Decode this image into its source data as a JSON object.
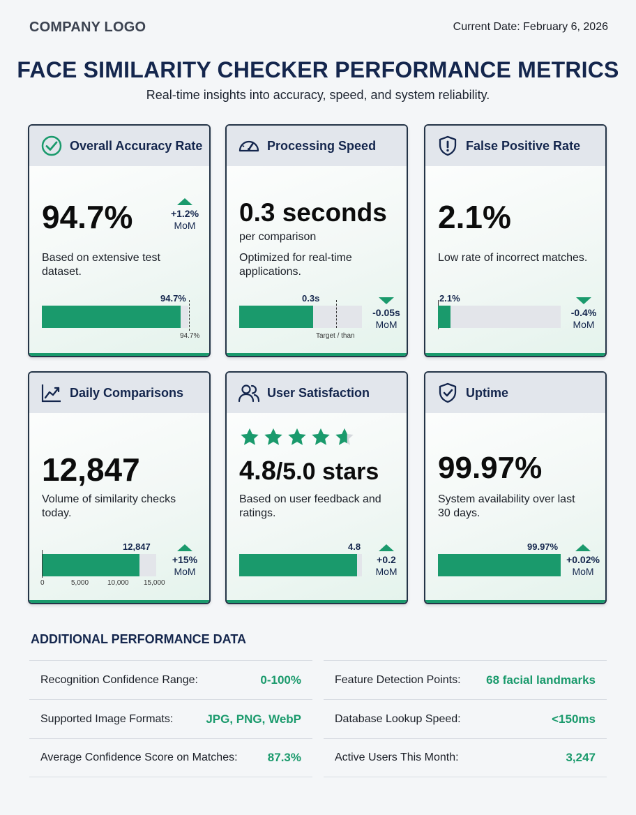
{
  "header": {
    "logo": "COMPANY LOGO",
    "date": "Current Date: February 6, 2026",
    "title": "FACE SIMILARITY CHECKER PERFORMANCE METRICS",
    "subtitle": "Real-time insights into accuracy, speed, and system reliability."
  },
  "colors": {
    "accent": "#1a9a6c",
    "navy": "#14264d",
    "track": "#e3e5ea"
  },
  "cards": {
    "accuracy": {
      "icon": "check-circle-icon",
      "title": "Overall Accuracy Rate",
      "value": "94.7%",
      "description": "Based on extensive test dataset.",
      "delta": "+1.2%",
      "delta_unit": "MoM",
      "bar_label": "94.7%",
      "bar_target_label": "94.7%",
      "fill": 0.947
    },
    "speed": {
      "icon": "speedometer-icon",
      "title": "Processing Speed",
      "value": "0.3 seconds",
      "unit": "per comparison",
      "description": "Optimized for real-time applications.",
      "delta": "-0.05s",
      "delta_unit": "MoM",
      "bar_label": "0.3s",
      "target_label": "Target / than",
      "fill": 0.6
    },
    "false_positive": {
      "icon": "shield-alert-icon",
      "title": "False Positive Rate",
      "value": "2.1%",
      "description": "Low rate of incorrect matches.",
      "delta": "-0.4%",
      "delta_unit": "MoM",
      "bar_label": "2.1%",
      "fill": 0.1
    },
    "daily": {
      "icon": "trend-chart-icon",
      "title": "Daily Comparisons",
      "value": "12,847",
      "description": "Volume of similarity checks today.",
      "delta": "+15%",
      "delta_unit": "MoM",
      "bar_label": "12,847",
      "axis_ticks": [
        "0",
        "5,000",
        "10,000",
        "15,000"
      ],
      "fill": 0.8565
    },
    "satisfaction": {
      "icon": "users-icon",
      "title": "User Satisfaction",
      "value_main": "4.8",
      "value_rest": "/5.0 stars",
      "rating": 4.8,
      "description": "Based on user feedback and ratings.",
      "delta": "+0.2",
      "delta_unit": "MoM",
      "bar_label": "4.8",
      "fill": 0.96
    },
    "uptime": {
      "icon": "shield-check-icon",
      "title": "Uptime",
      "value": "99.97%",
      "description": "System availability over last 30 days.",
      "delta": "+0.02%",
      "delta_unit": "MoM",
      "bar_label": "99.97%",
      "fill": 0.9997
    }
  },
  "additional": {
    "title": "ADDITIONAL PERFORMANCE DATA",
    "left": [
      {
        "label": "Recognition Confidence Range:",
        "value": "0-100%"
      },
      {
        "label": "Supported Image Formats:",
        "value": "JPG, PNG, WebP"
      },
      {
        "label": "Average Confidence Score on Matches:",
        "value": "87.3%"
      }
    ],
    "right": [
      {
        "label": "Feature Detection Points:",
        "value": "68 facial landmarks"
      },
      {
        "label": "Database Lookup Speed:",
        "value": "<150ms"
      },
      {
        "label": "Active Users This Month:",
        "value": "3,247"
      }
    ]
  }
}
